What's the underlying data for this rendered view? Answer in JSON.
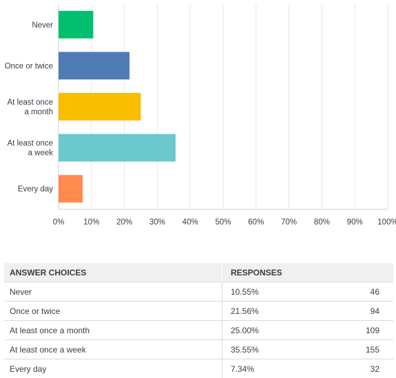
{
  "chart_data": {
    "type": "bar",
    "orientation": "horizontal",
    "categories": [
      "Never",
      "Once or twice",
      "At least once a month",
      "At least once a week",
      "Every day"
    ],
    "category_lines": [
      [
        "Never"
      ],
      [
        "Once or twice"
      ],
      [
        "At least once",
        "a month"
      ],
      [
        "At least once",
        "a week"
      ],
      [
        "Every day"
      ]
    ],
    "values": [
      10.55,
      21.56,
      25.0,
      35.55,
      7.34
    ],
    "colors": [
      "#00bf6f",
      "#507cb6",
      "#f9be00",
      "#6bc8cd",
      "#ff8b4f"
    ],
    "xlim": [
      0,
      100
    ],
    "xticks": [
      0,
      10,
      20,
      30,
      40,
      50,
      60,
      70,
      80,
      90,
      100
    ],
    "xtick_labels": [
      "0%",
      "10%",
      "20%",
      "30%",
      "40%",
      "50%",
      "60%",
      "70%",
      "80%",
      "90%",
      "100%"
    ],
    "grid": true
  },
  "table": {
    "headers": {
      "choice": "ANSWER CHOICES",
      "responses": "RESPONSES"
    },
    "rows": [
      {
        "choice": "Never",
        "percent": "10.55%",
        "count": "46"
      },
      {
        "choice": "Once or twice",
        "percent": "21.56%",
        "count": "94"
      },
      {
        "choice": "At least once a month",
        "percent": "25.00%",
        "count": "109"
      },
      {
        "choice": "At least once a week",
        "percent": "35.55%",
        "count": "155"
      },
      {
        "choice": "Every day",
        "percent": "7.34%",
        "count": "32"
      }
    ]
  }
}
